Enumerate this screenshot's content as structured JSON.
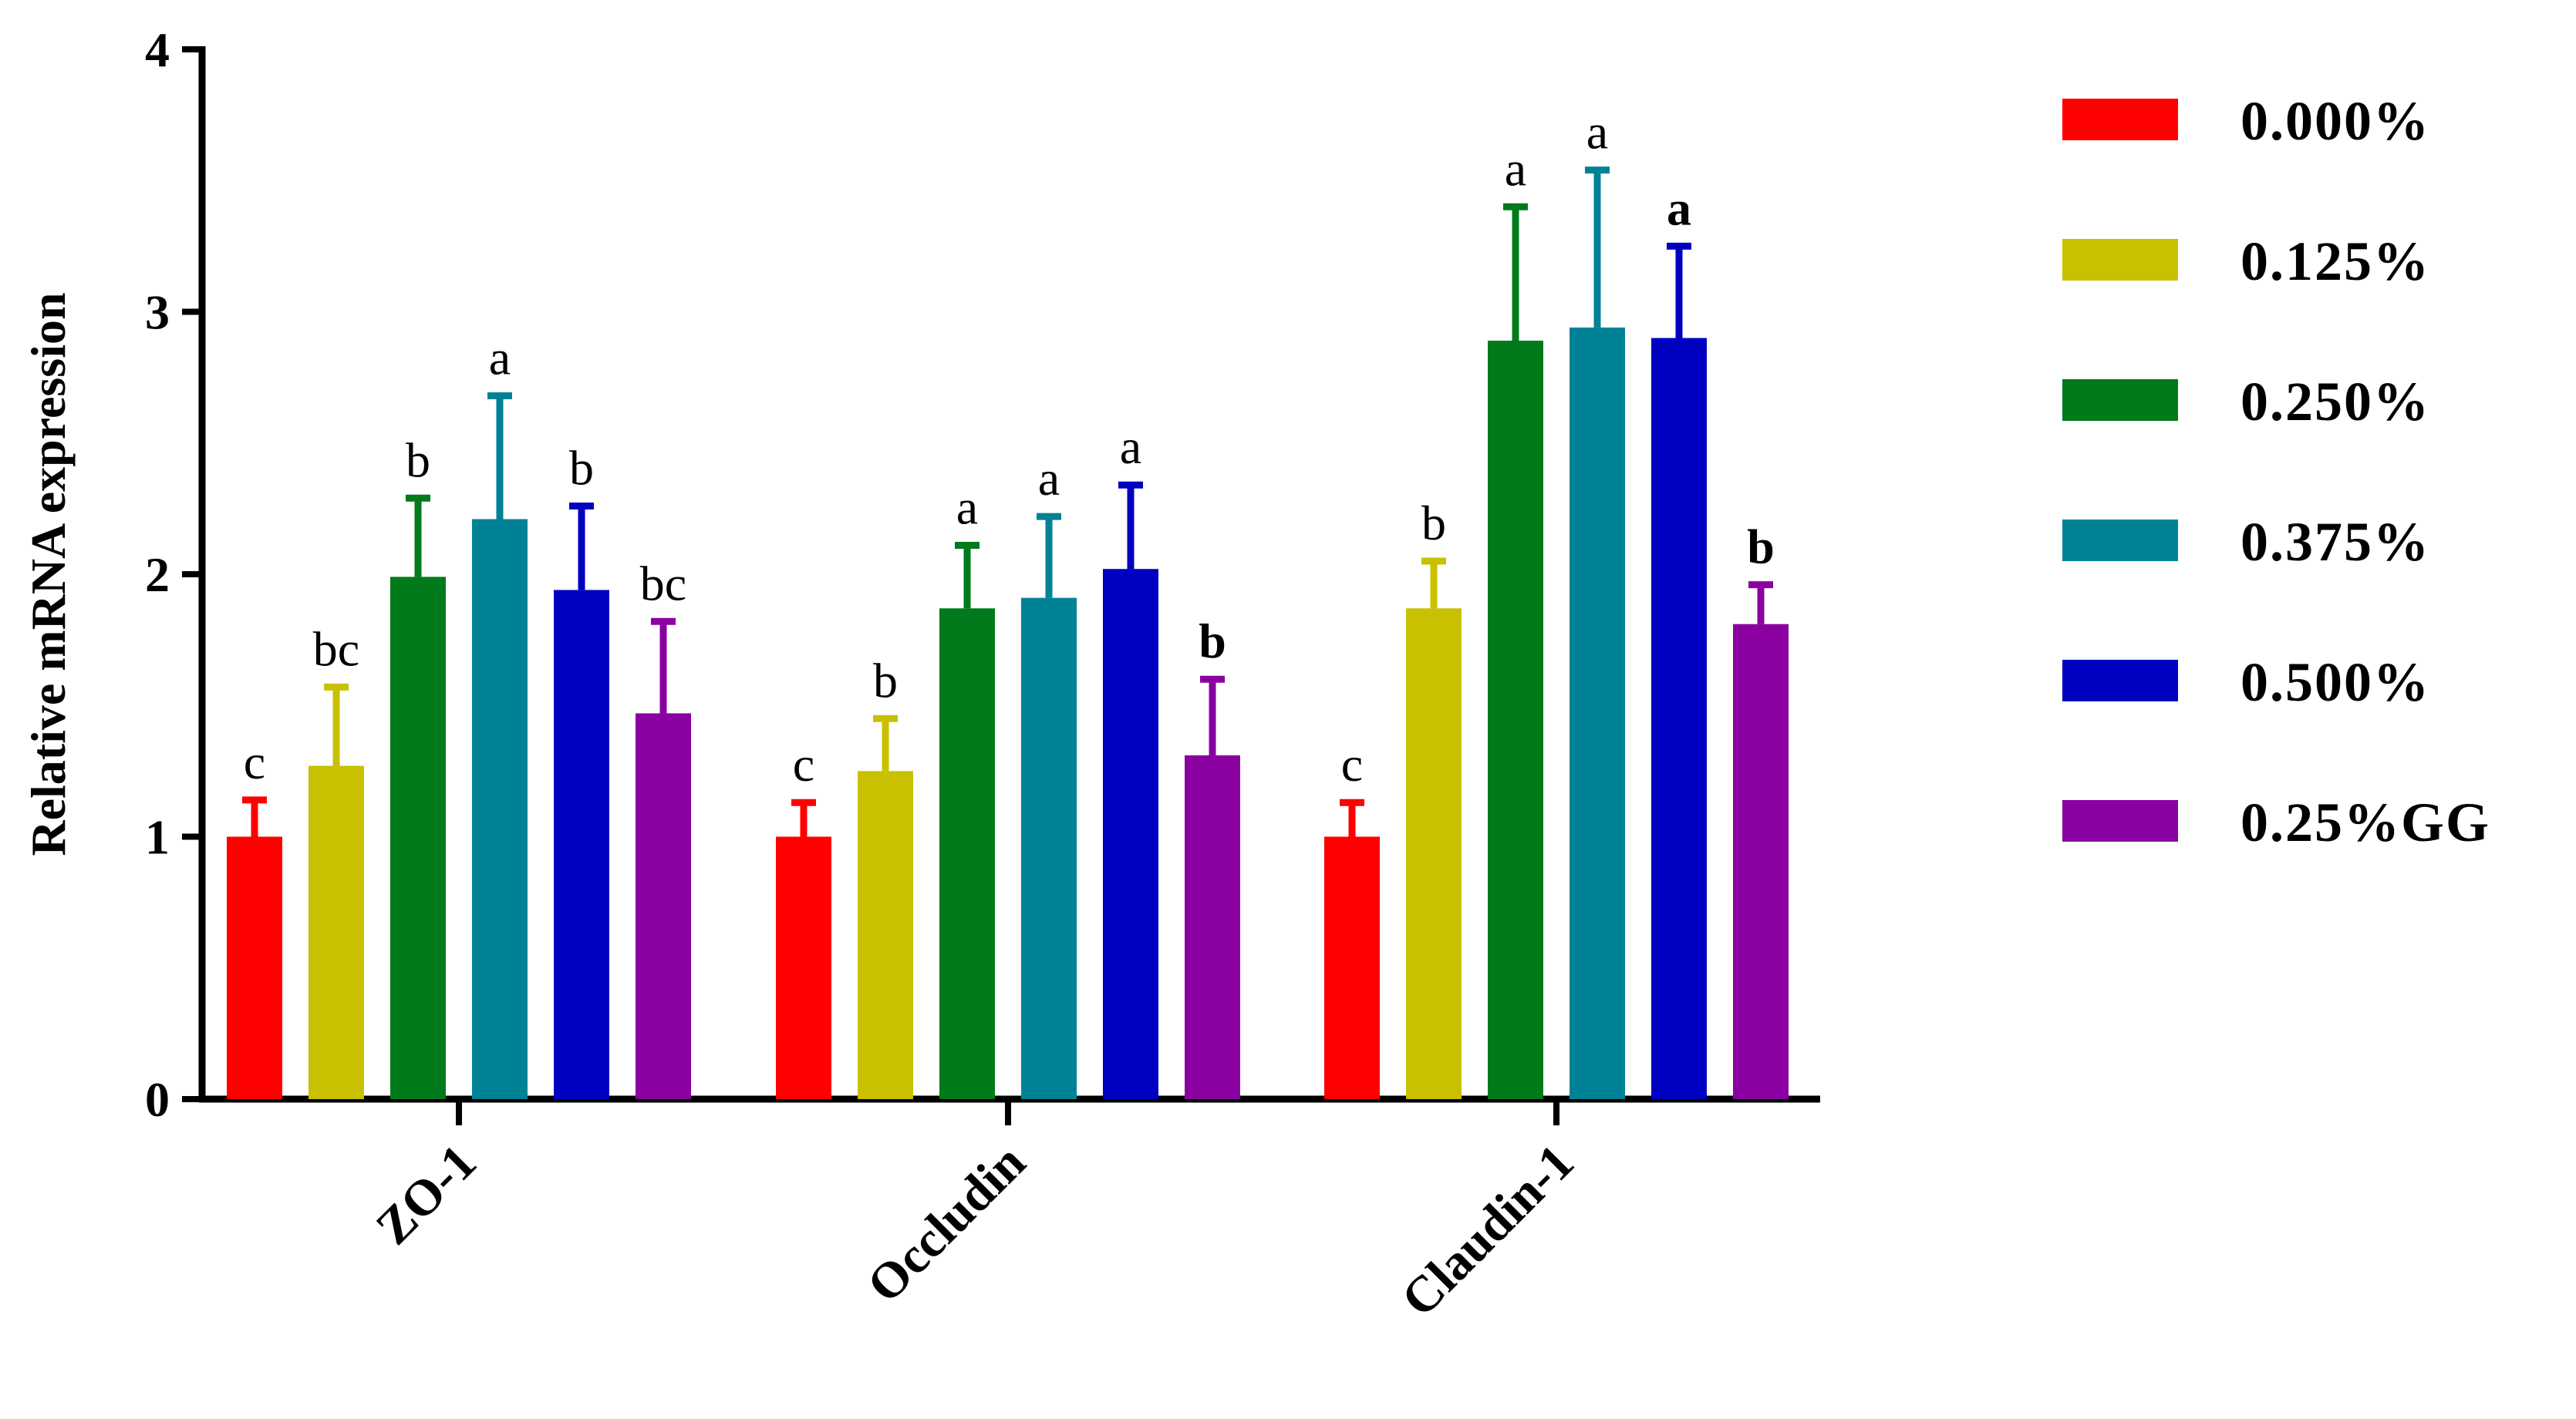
{
  "chart_data": {
    "type": "bar",
    "categories": [
      "ZO-1",
      "Occludin",
      "Claudin-1"
    ],
    "ylabel": "Relative mRNA expression",
    "xlabel": "",
    "ylim": [
      0,
      4
    ],
    "yticks": [
      0,
      1,
      2,
      3,
      4
    ],
    "grid": false,
    "legend_position": "right",
    "series": [
      {
        "name": "0.000%",
        "color": "#ff0000",
        "values": [
          1.0,
          1.0,
          1.0
        ],
        "errors": [
          0.14,
          0.13,
          0.13
        ]
      },
      {
        "name": "0.125%",
        "color": "#c8c000",
        "values": [
          1.27,
          1.25,
          1.87
        ],
        "errors": [
          0.3,
          0.2,
          0.18
        ]
      },
      {
        "name": "0.250%",
        "color": "#007a1a",
        "values": [
          1.99,
          1.87,
          2.89
        ],
        "errors": [
          0.3,
          0.24,
          0.51
        ]
      },
      {
        "name": "0.375%",
        "color": "#008296",
        "values": [
          2.21,
          1.91,
          2.94
        ],
        "errors": [
          0.47,
          0.31,
          0.6
        ]
      },
      {
        "name": "0.500%",
        "color": "#0000c0",
        "values": [
          1.94,
          2.02,
          2.9
        ],
        "errors": [
          0.32,
          0.32,
          0.35
        ]
      },
      {
        "name": "0.25%GG",
        "color": "#8a00a0",
        "values": [
          1.47,
          1.31,
          1.81
        ],
        "errors": [
          0.35,
          0.29,
          0.15
        ]
      }
    ],
    "significance_letters": [
      [
        "c",
        "c",
        "c"
      ],
      [
        "bc",
        "b",
        "b"
      ],
      [
        "b",
        "a",
        "a"
      ],
      [
        "a",
        "a",
        "a"
      ],
      [
        "b",
        "a",
        "a"
      ],
      [
        "bc",
        "b",
        "b"
      ]
    ]
  }
}
